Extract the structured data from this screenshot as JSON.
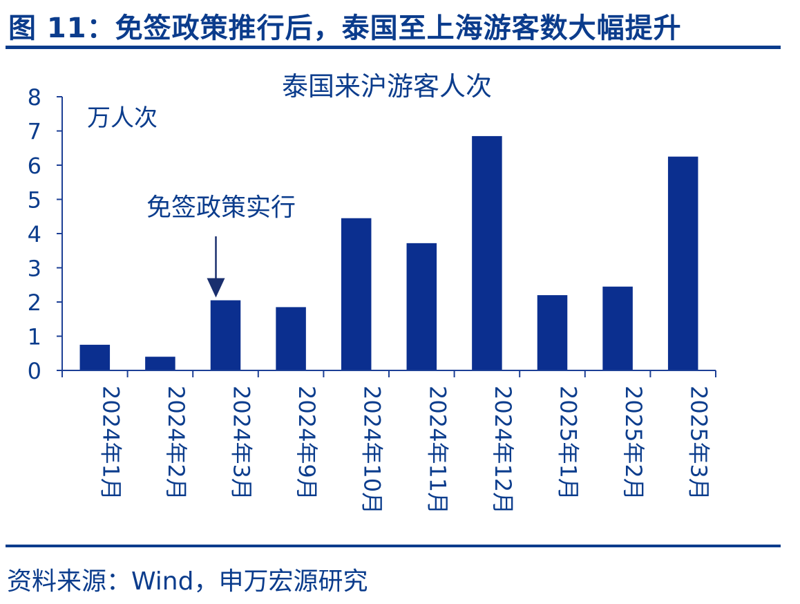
{
  "figure": {
    "title": "图 11：免签政策推行后，泰国至上海游客数大幅提升",
    "source": "资料来源：Wind，申万宏源研究"
  },
  "colors": {
    "bar": "#0b2f8f",
    "axis": "#1c3f95",
    "text": "#0b3c8c"
  },
  "chart_data": {
    "type": "bar",
    "title": "泰国来沪游客人次",
    "unit_label": "万人次",
    "categories": [
      "2024年1月",
      "2024年2月",
      "2024年3月",
      "2024年9月",
      "2024年10月",
      "2024年11月",
      "2024年12月",
      "2025年1月",
      "2025年2月",
      "2025年3月"
    ],
    "values": [
      0.75,
      0.4,
      2.05,
      1.85,
      4.45,
      3.72,
      6.85,
      2.2,
      2.45,
      6.25
    ],
    "ylim": [
      0,
      8
    ],
    "yticks": [
      "0",
      "1",
      "2",
      "3",
      "4",
      "5",
      "6",
      "7",
      "8"
    ],
    "grid": false,
    "annotation": {
      "text": "免签政策实行",
      "category_index": 2
    }
  }
}
